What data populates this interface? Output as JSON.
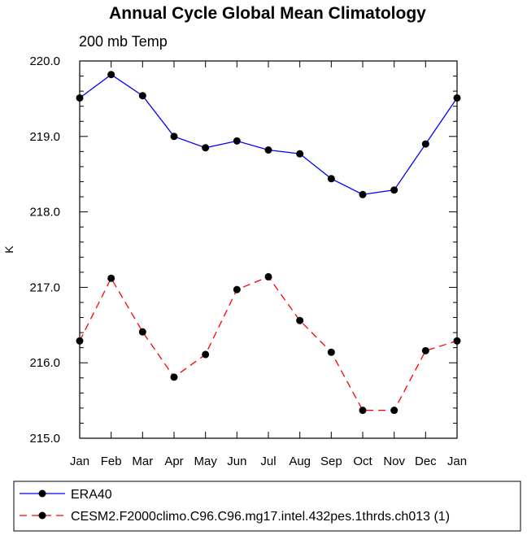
{
  "chart_data": {
    "type": "line",
    "title": "Annual Cycle Global Mean Climatology",
    "subtitle": "200 mb Temp",
    "xlabel": "",
    "ylabel": "K",
    "categories": [
      "Jan",
      "Feb",
      "Mar",
      "Apr",
      "May",
      "Jun",
      "Jul",
      "Aug",
      "Sep",
      "Oct",
      "Nov",
      "Dec",
      "Jan"
    ],
    "ylim": [
      215.0,
      220.0
    ],
    "yticks": [
      "215.0",
      "216.0",
      "217.0",
      "218.0",
      "219.0",
      "220.0"
    ],
    "grid": false,
    "legend_position": "bottom",
    "series": [
      {
        "name": "ERA40",
        "color": "#0000ff",
        "dash": "solid",
        "values": [
          219.51,
          219.82,
          219.54,
          219.0,
          218.85,
          218.94,
          218.82,
          218.77,
          218.44,
          218.23,
          218.29,
          218.9,
          219.51
        ]
      },
      {
        "name": "CESM2.F2000climo.C96.C96.mg17.intel.432pes.1thrds.ch013 (1)",
        "color": "#ff0000",
        "dash": "dashed",
        "values": [
          216.29,
          217.12,
          216.41,
          215.81,
          216.11,
          216.97,
          217.14,
          216.56,
          216.14,
          215.37,
          215.37,
          216.16,
          216.29
        ]
      }
    ]
  }
}
